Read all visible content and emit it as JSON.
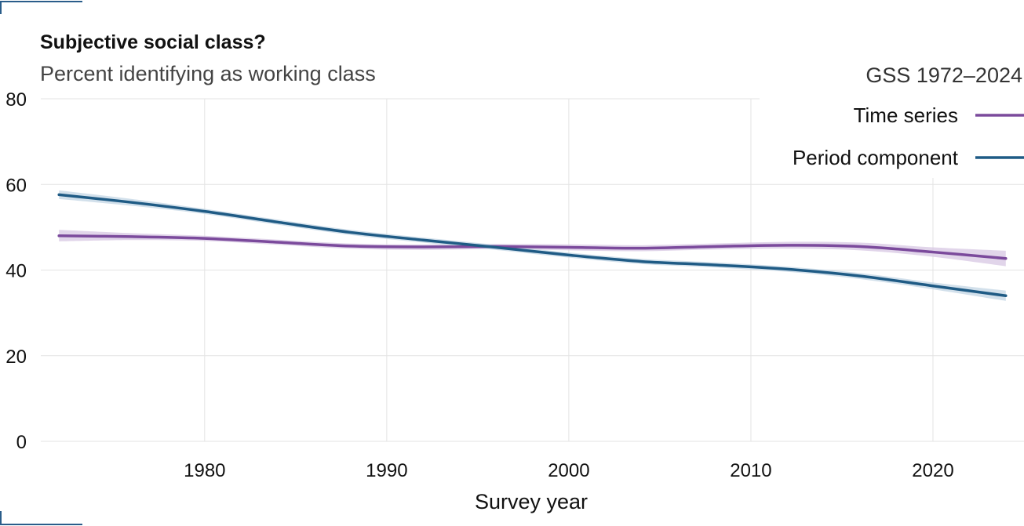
{
  "chart_data": {
    "type": "line",
    "title": "Subjective social class?",
    "subtitle": "Percent identifying as working class",
    "source_label": "GSS 1972–2024",
    "xlabel": "Survey year",
    "ylabel": "",
    "xlim": [
      1971,
      2025
    ],
    "ylim": [
      0,
      80
    ],
    "x_ticks": [
      1980,
      1990,
      2000,
      2010,
      2020
    ],
    "x_tick_labels": [
      "1980",
      "1990",
      "2000",
      "2010",
      "2020"
    ],
    "y_ticks": [
      0,
      20,
      40,
      60,
      80
    ],
    "y_tick_labels": [
      "0",
      "20",
      "40",
      "60",
      "80"
    ],
    "grid": true,
    "legend_position": "top-right",
    "series": [
      {
        "name": "Time series",
        "color": "#7b4a9c",
        "band_color": "#d7c7e3",
        "x": [
          1972,
          1976,
          1980,
          1984,
          1988,
          1992,
          1996,
          2000,
          2004,
          2008,
          2012,
          2016,
          2020,
          2024
        ],
        "y": [
          48.0,
          47.8,
          47.4,
          46.5,
          45.6,
          45.4,
          45.5,
          45.3,
          45.1,
          45.5,
          45.8,
          45.5,
          44.2,
          42.7
        ],
        "lower": [
          46.7,
          47.0,
          46.8,
          45.9,
          45.0,
          44.7,
          44.9,
          44.6,
          44.4,
          44.8,
          45.0,
          44.6,
          43.1,
          40.9
        ],
        "upper": [
          49.4,
          48.6,
          48.0,
          47.1,
          46.2,
          46.0,
          46.1,
          46.0,
          45.8,
          46.2,
          46.6,
          46.4,
          45.3,
          44.5
        ]
      },
      {
        "name": "Period component",
        "color": "#1f5b85",
        "band_color": "#c3d6e4",
        "x": [
          1972,
          1976,
          1980,
          1984,
          1988,
          1992,
          1996,
          2000,
          2004,
          2008,
          2012,
          2016,
          2020,
          2024
        ],
        "y": [
          57.6,
          55.8,
          53.7,
          51.2,
          48.8,
          47.0,
          45.3,
          43.5,
          42.0,
          41.2,
          40.2,
          38.6,
          36.3,
          34.0
        ],
        "lower": [
          56.6,
          55.0,
          53.1,
          50.6,
          48.2,
          46.4,
          44.7,
          42.9,
          41.4,
          40.6,
          39.6,
          37.9,
          35.5,
          32.8
        ],
        "upper": [
          58.6,
          56.6,
          54.3,
          51.8,
          49.4,
          47.6,
          45.9,
          44.1,
          42.6,
          41.8,
          40.8,
          39.3,
          37.1,
          35.2
        ]
      }
    ]
  }
}
